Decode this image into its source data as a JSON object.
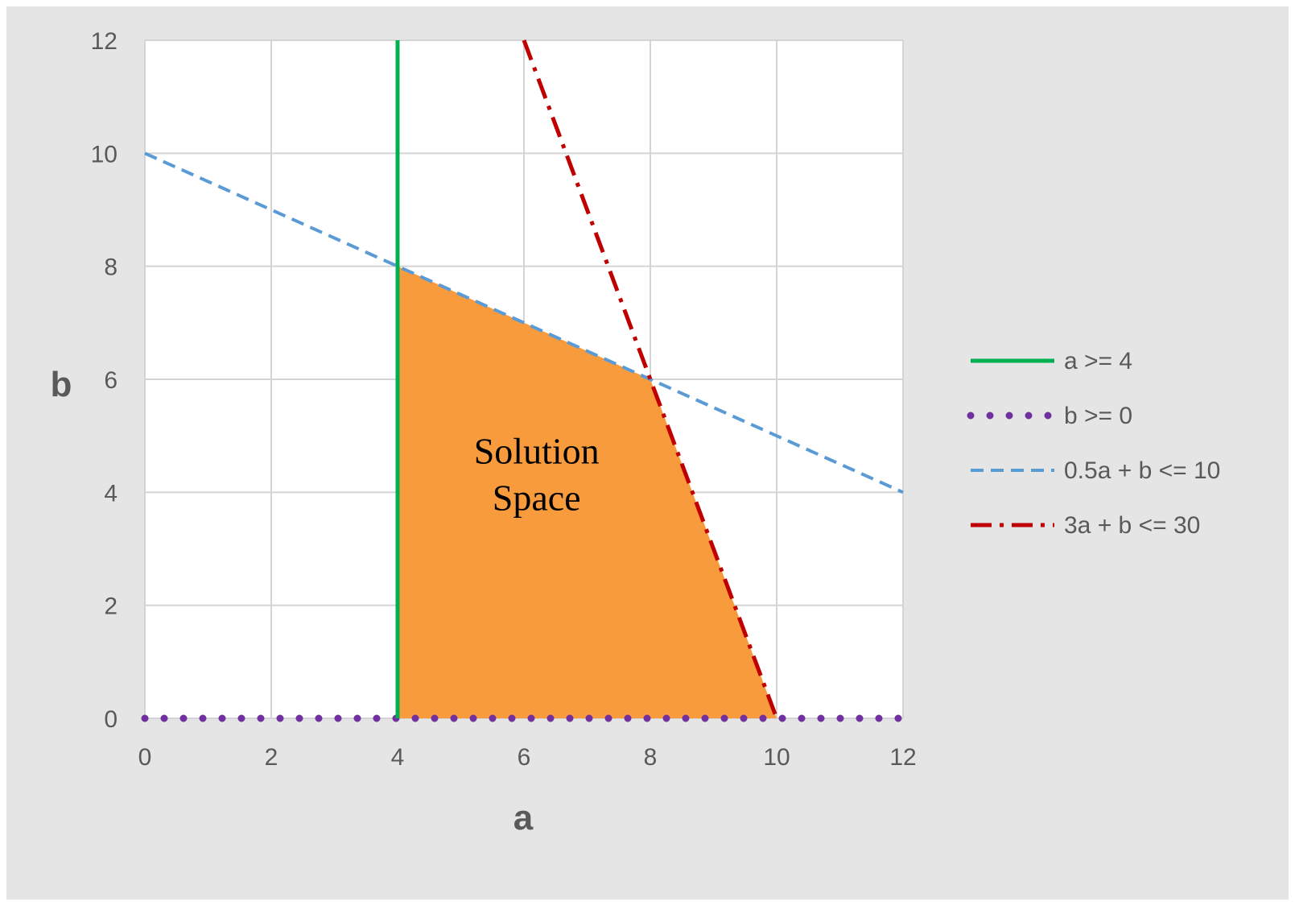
{
  "chart_data": {
    "type": "line",
    "title": "",
    "xlabel": "a",
    "ylabel": "b",
    "xlim": [
      0,
      12
    ],
    "ylim": [
      0,
      12
    ],
    "xticks": [
      0,
      2,
      4,
      6,
      8,
      10,
      12
    ],
    "yticks": [
      0,
      2,
      4,
      6,
      8,
      10,
      12
    ],
    "grid": true,
    "legend_position": "right",
    "series": [
      {
        "name": "a >= 4",
        "style": "solid",
        "color": "#00b050",
        "points": [
          [
            4,
            0
          ],
          [
            4,
            12
          ]
        ]
      },
      {
        "name": "b >= 0",
        "style": "dotted",
        "color": "#7030a0",
        "points": [
          [
            0,
            0
          ],
          [
            12,
            0
          ]
        ]
      },
      {
        "name": "0.5a + b <= 10",
        "style": "dashed",
        "color": "#5b9bd5",
        "points": [
          [
            0,
            10
          ],
          [
            12,
            4
          ]
        ]
      },
      {
        "name": "3a + b <= 30",
        "style": "dash-dot",
        "color": "#c00000",
        "points": [
          [
            6,
            12
          ],
          [
            10,
            0
          ]
        ]
      }
    ],
    "region": {
      "fill": "#f79b3c",
      "points": [
        [
          4,
          0
        ],
        [
          4,
          8
        ],
        [
          8,
          6
        ],
        [
          10,
          0
        ]
      ]
    },
    "annotation": {
      "lines": [
        "Solution",
        "Space"
      ],
      "at": [
        6.2,
        4.2
      ]
    }
  },
  "colors": {
    "frame": "#e5e5e5",
    "grid": "#d4d4d4",
    "text": "#595959"
  }
}
